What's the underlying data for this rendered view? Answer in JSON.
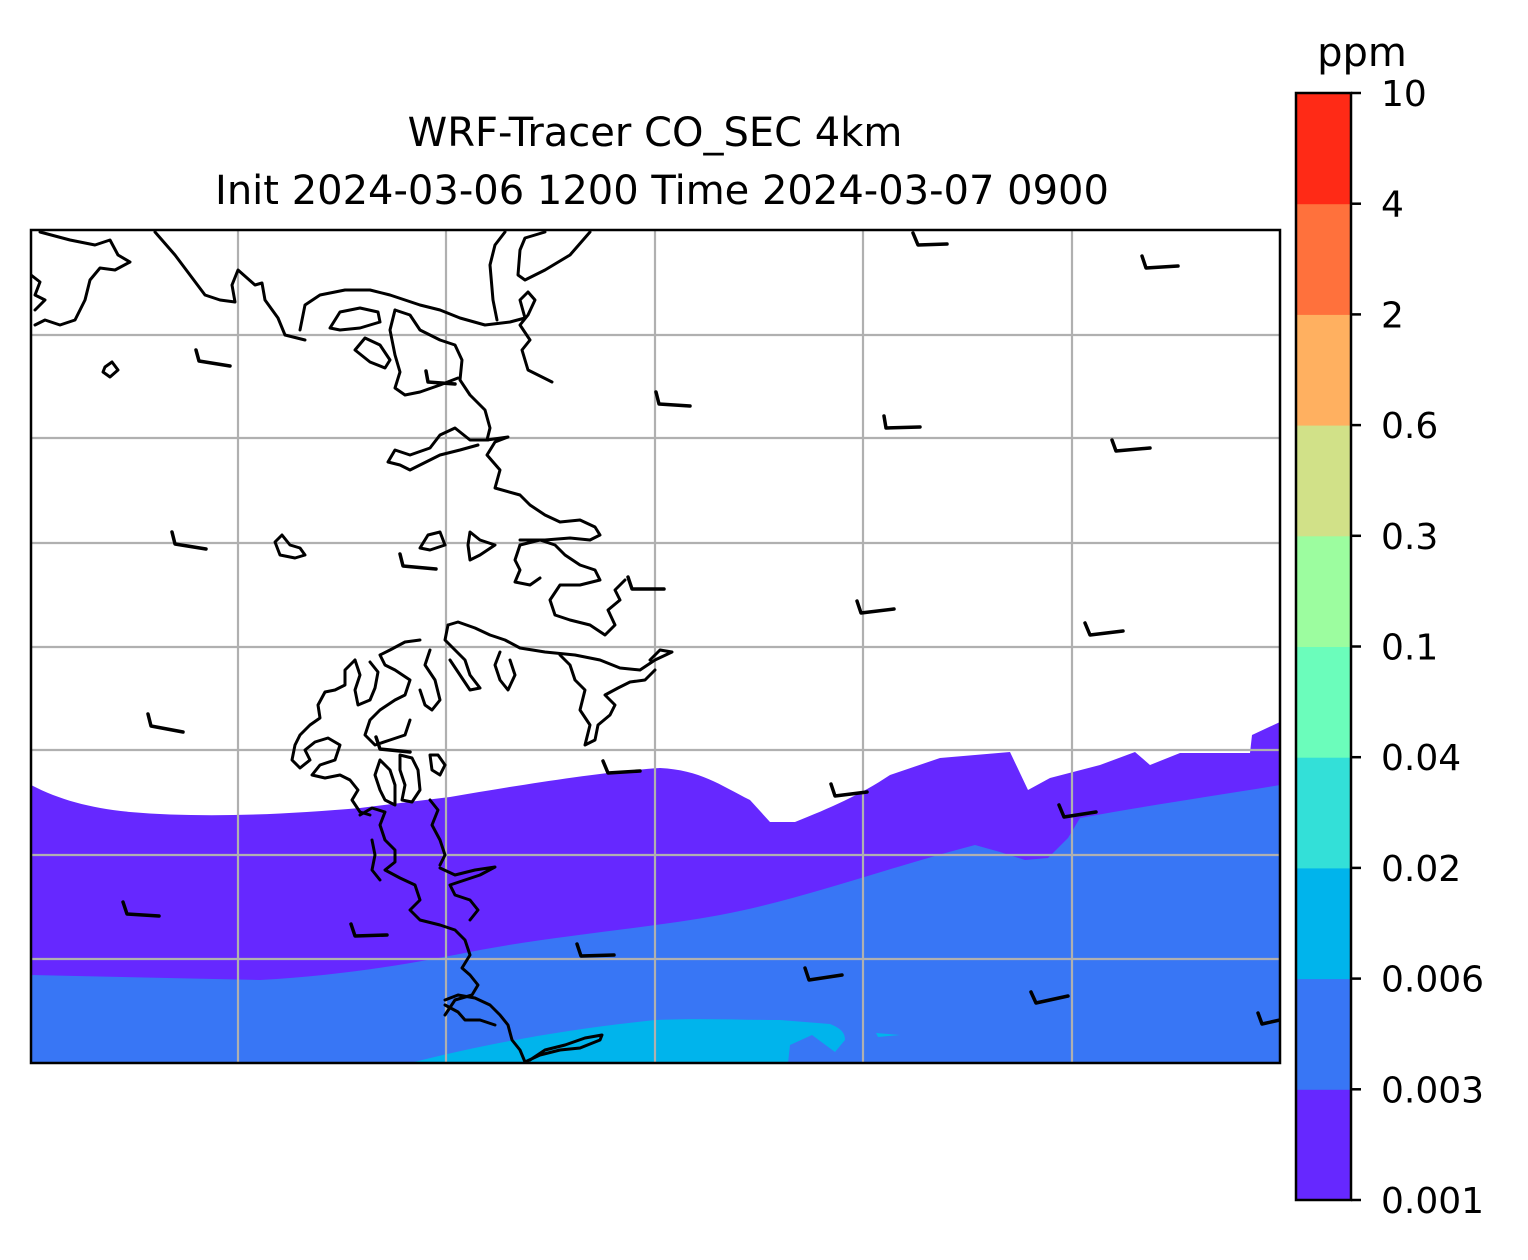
{
  "title": {
    "line1": "WRF-Tracer CO_SEC 4km",
    "line2": "Init 2024-03-06 1200 Time 2024-03-07 0900"
  },
  "colorbar": {
    "unit_label": "ppm",
    "levels": [
      {
        "label": "0.001",
        "color": "#6628ff"
      },
      {
        "label": "0.003",
        "color": "#3876f5"
      },
      {
        "label": "0.006",
        "color": "#00b4ec"
      },
      {
        "label": "0.02",
        "color": "#33e0d8"
      },
      {
        "label": "0.04",
        "color": "#6bfdbb"
      },
      {
        "label": "0.1",
        "color": "#9cfd9f"
      },
      {
        "label": "0.3",
        "color": "#d1e188"
      },
      {
        "label": "0.6",
        "color": "#ffb060"
      },
      {
        "label": "2",
        "color": "#ff713c"
      },
      {
        "label": "4",
        "color": "#ff2a16"
      },
      {
        "label": "10",
        "color": null
      }
    ]
  },
  "map": {
    "gridlines": true,
    "coastline_color": "#000000",
    "gridline_color": "#b0b0b0",
    "barb_color": "#000000"
  }
}
